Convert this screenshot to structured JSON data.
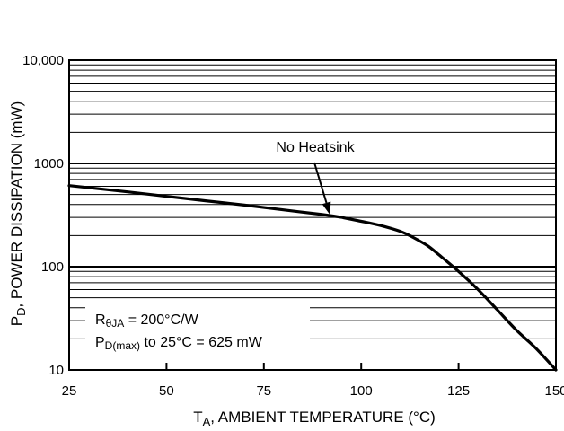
{
  "chart_data": {
    "type": "line",
    "title": "",
    "xlabel": {
      "main": "T",
      "sub": "A",
      "rest": ", AMBIENT TEMPERATURE (°C)"
    },
    "ylabel": {
      "main": "P",
      "sub": "D",
      "rest": ", POWER DISSIPATION (mW)"
    },
    "x_scale": "linear",
    "y_scale": "log",
    "xlim": [
      25,
      150
    ],
    "ylim": [
      10,
      10000
    ],
    "x_ticks": [
      {
        "value": 25,
        "label": "25"
      },
      {
        "value": 50,
        "label": "50"
      },
      {
        "value": 75,
        "label": "75"
      },
      {
        "value": 100,
        "label": "100"
      },
      {
        "value": 125,
        "label": "125"
      },
      {
        "value": 150,
        "label": "150"
      }
    ],
    "y_ticks": [
      {
        "value": 10,
        "label": "10"
      },
      {
        "value": 100,
        "label": "100"
      },
      {
        "value": 1000,
        "label": "1000"
      },
      {
        "value": 10000,
        "label": "10,000"
      }
    ],
    "grid": {
      "x": false,
      "y_minor_log": true
    },
    "series": [
      {
        "name": "",
        "x": [
          25,
          40,
          50,
          60,
          70,
          80,
          90,
          95,
          100,
          105,
          110,
          113,
          117,
          120,
          125,
          130,
          135,
          140,
          145,
          150
        ],
        "y": [
          610,
          530,
          480,
          435,
          395,
          355,
          320,
          300,
          275,
          250,
          220,
          195,
          160,
          130,
          90,
          60,
          38,
          24,
          16,
          10
        ]
      }
    ],
    "annotations": [
      {
        "text": "No Heatsink",
        "arrow_to": {
          "x": 92,
          "y": 305
        }
      },
      {
        "line1": {
          "main": "R",
          "sub": "θJA",
          "rest": " = 200°C/W"
        },
        "line2": {
          "main": "P",
          "sub": "D(max)",
          "rest": " to 25°C = 625 mW"
        }
      }
    ]
  }
}
